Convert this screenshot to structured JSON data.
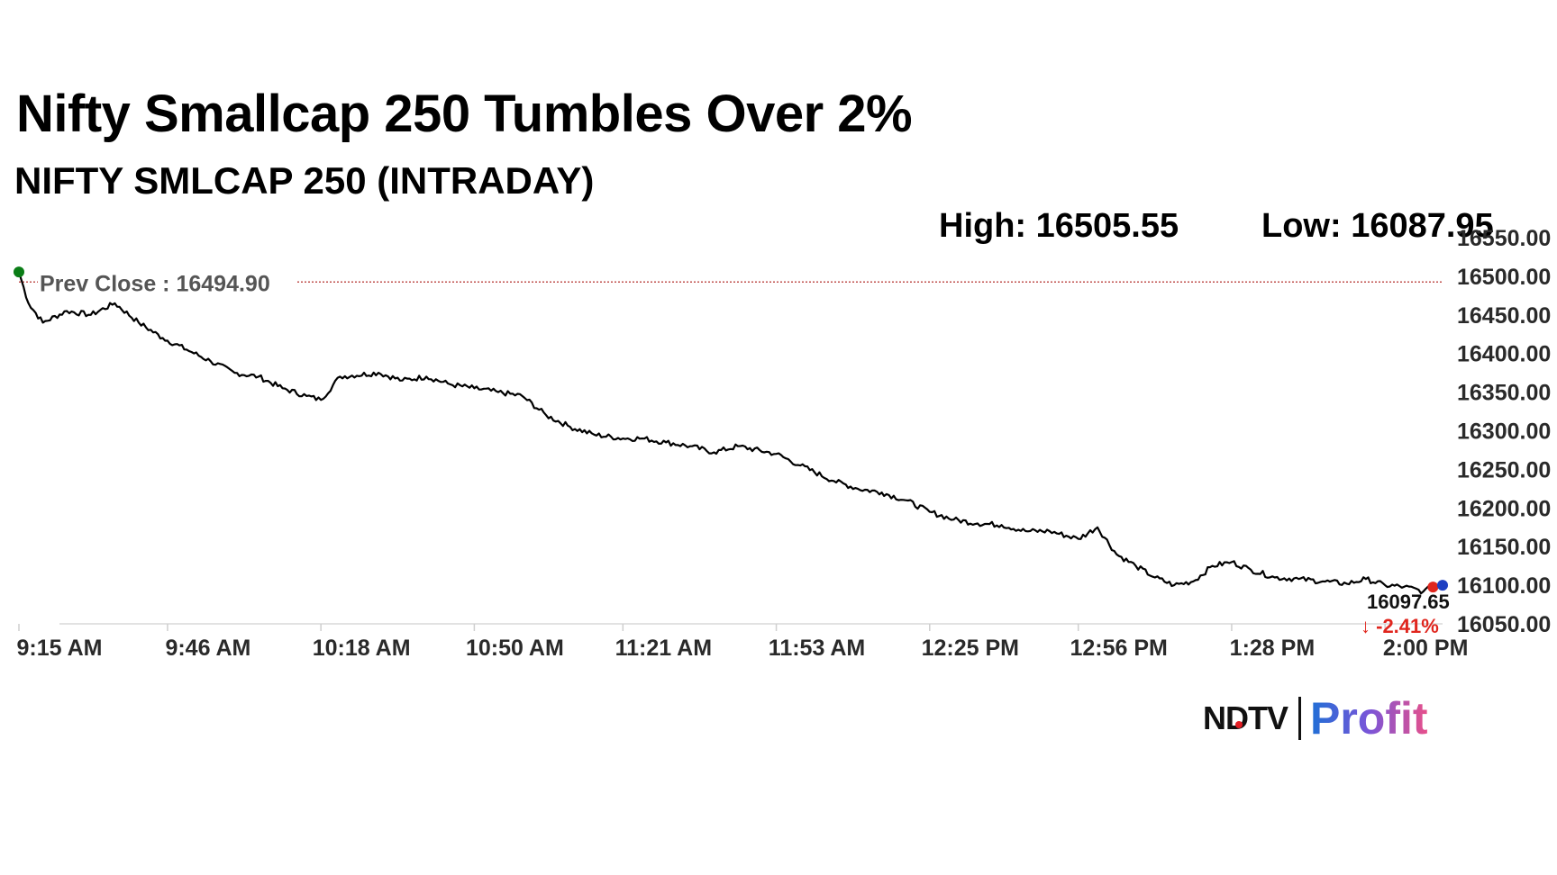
{
  "headline": "Nifty Smallcap 250 Tumbles Over 2%",
  "subtitle": "NIFTY SMLCAP 250 (INTRADAY)",
  "stats": {
    "high": "High: 16505.55",
    "low": "Low: 16087.95"
  },
  "logo": {
    "ndtv": "NDTV",
    "profit": "Profit"
  },
  "chart_data": {
    "type": "line",
    "title": "NIFTY SMLCAP 250 (INTRADAY)",
    "x_ticks": [
      "9:15 AM",
      "9:46 AM",
      "10:18 AM",
      "10:50 AM",
      "11:21 AM",
      "11:53 AM",
      "12:25 PM",
      "12:56 PM",
      "1:28 PM",
      "2:00 PM"
    ],
    "y_ticks": [
      "16050.00",
      "16100.00",
      "16150.00",
      "16200.00",
      "16250.00",
      "16300.00",
      "16350.00",
      "16400.00",
      "16450.00",
      "16500.00",
      "16550.00"
    ],
    "ylim": [
      16050,
      16550
    ],
    "xlim": [
      "9:15 AM",
      "2:12 PM"
    ],
    "grid": false,
    "prev_close": {
      "label": "Prev Close : 16494.90",
      "value": 16494.9
    },
    "last": {
      "time": "2:10 PM",
      "value": 16097.65,
      "label": "16097.65",
      "change": "-2.41%",
      "arrow": "↓"
    },
    "colors": {
      "line": "#000000",
      "prev_close": "#c0504d",
      "start_dot": "#0a7d16",
      "last_dot": "#e0261e",
      "end_dot": "#1f3fc2",
      "change": "#e0261e"
    },
    "series": [
      {
        "x": [
          "9:15 AM",
          "9:17 AM",
          "9:20 AM",
          "9:25 AM",
          "9:30 AM",
          "9:35 AM",
          "9:40 AM",
          "9:45 AM",
          "9:50 AM",
          "9:55 AM",
          "10:00 AM",
          "10:05 AM",
          "10:10 AM",
          "10:15 AM",
          "10:18 AM",
          "10:22 AM",
          "10:30 AM",
          "10:35 AM",
          "10:40 AM",
          "10:45 AM",
          "10:50 AM",
          "10:55 AM",
          "11:00 AM",
          "11:05 AM",
          "11:10 AM",
          "11:15 AM",
          "11:21 AM",
          "11:25 AM",
          "11:30 AM",
          "11:35 AM",
          "11:40 AM",
          "11:45 AM",
          "11:53 AM",
          "11:58 AM",
          "12:05 PM",
          "12:10 PM",
          "12:15 PM",
          "12:20 PM",
          "12:25 PM",
          "12:30 PM",
          "12:35 PM",
          "12:40 PM",
          "12:45 PM",
          "12:50 PM",
          "12:56 PM",
          "1:00 PM",
          "1:04 PM",
          "1:08 PM",
          "1:12 PM",
          "1:16 PM",
          "1:20 PM",
          "1:24 PM",
          "1:28 PM",
          "1:32 PM",
          "1:37 PM",
          "1:42 PM",
          "1:47 PM",
          "1:52 PM",
          "1:56 PM",
          "2:00 PM",
          "2:04 PM",
          "2:08 PM",
          "2:10 PM"
        ],
        "values": [
          16505.55,
          16465,
          16440,
          16455,
          16450,
          16465,
          16440,
          16420,
          16405,
          16390,
          16375,
          16370,
          16355,
          16345,
          16340,
          16370,
          16375,
          16365,
          16370,
          16360,
          16355,
          16350,
          16345,
          16320,
          16305,
          16295,
          16290,
          16290,
          16285,
          16280,
          16272,
          16280,
          16270,
          16255,
          16235,
          16225,
          16220,
          16210,
          16195,
          16185,
          16180,
          16178,
          16170,
          16170,
          16160,
          16175,
          16140,
          16125,
          16110,
          16100,
          16105,
          16125,
          16130,
          16120,
          16110,
          16108,
          16105,
          16102,
          16108,
          16100,
          16098,
          16092,
          16097.65
        ]
      }
    ]
  }
}
